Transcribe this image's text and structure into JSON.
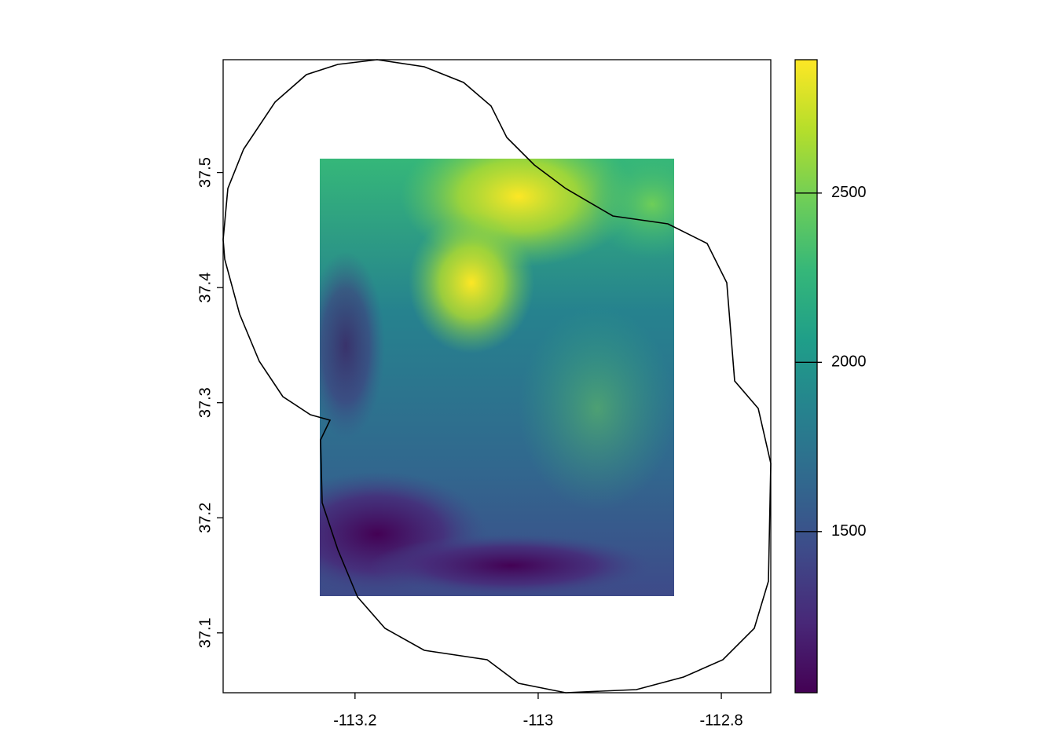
{
  "chart_data": {
    "type": "raster",
    "xlim": [
      -113.344,
      -112.746
    ],
    "ylim": [
      37.048,
      37.598
    ],
    "xticks": [
      -113.2,
      -113,
      -112.8
    ],
    "yticks": [
      37.1,
      37.2,
      37.3,
      37.4,
      37.5
    ],
    "colorbar": {
      "lim": [
        1024,
        2894
      ],
      "ticks": [
        1500,
        2000,
        2500
      ],
      "colors": [
        "#440154",
        "#482878",
        "#3e4a89",
        "#31688e",
        "#26828e",
        "#1f9e89",
        "#35b779",
        "#6ece58",
        "#b5de2b",
        "#fde725"
      ]
    }
  }
}
